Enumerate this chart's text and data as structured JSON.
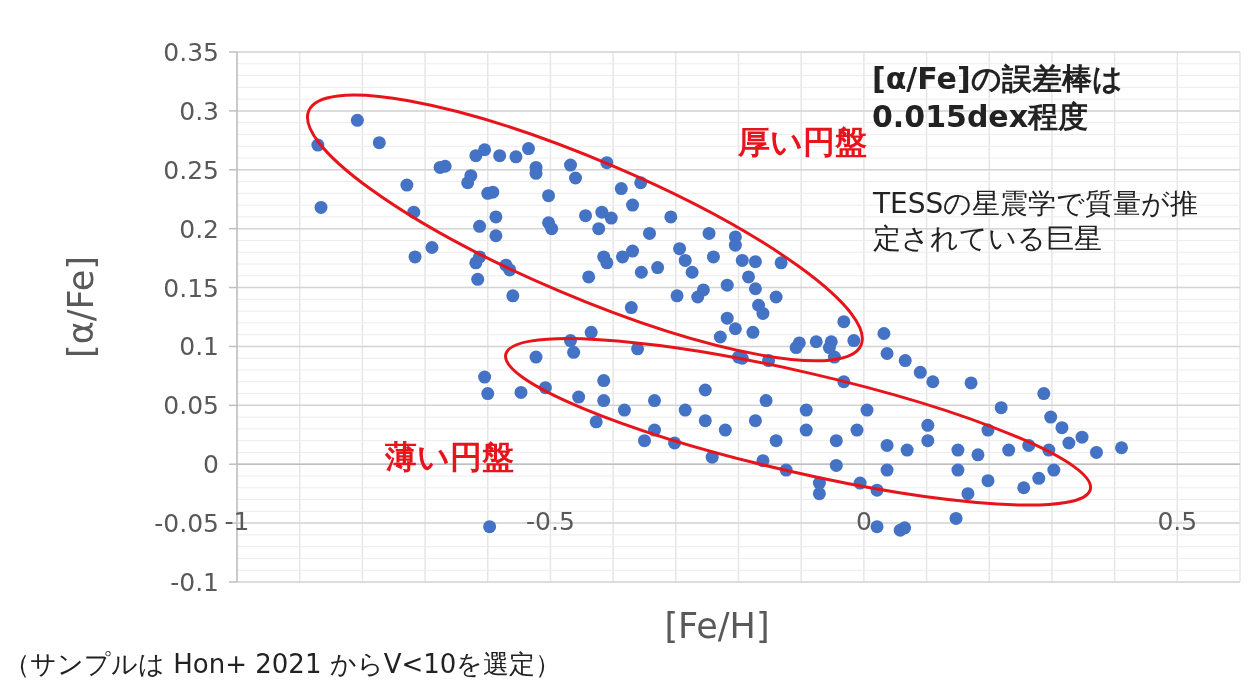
{
  "chart_data": {
    "type": "scatter",
    "xlabel": "[Fe/H]",
    "ylabel": "[α/Fe]",
    "color": "#4472c4",
    "marker": "circle",
    "grid": true,
    "xlim": [
      -1,
      0.6
    ],
    "ylim": [
      -0.1,
      0.35
    ],
    "xticks": [
      -1,
      -0.5,
      0,
      0.5
    ],
    "yticks": [
      -0.1,
      -0.05,
      0,
      0.05,
      0.1,
      0.15,
      0.2,
      0.25,
      0.3,
      0.35
    ],
    "annotations": [
      "厚い円盤",
      "薄い円盤",
      "[α/Fe]の誤差棒は0.015dex程度",
      "TESSの星震学で質量が推定されている巨星",
      "（サンプルは Hon+ 2021 からV<10を選定）"
    ],
    "x": [
      -0.871,
      -0.808,
      -0.773,
      -0.866,
      -0.729,
      -0.718,
      -0.716,
      -0.689,
      -0.676,
      -0.668,
      -0.632,
      -0.627,
      -0.619,
      -0.605,
      -0.581,
      -0.555,
      -0.535,
      -0.523,
      -0.523,
      -0.503,
      -0.503,
      -0.498,
      -0.6,
      -0.592,
      -0.587,
      -0.613,
      -0.587,
      -0.613,
      -0.619,
      -0.571,
      -0.565,
      -0.616,
      -0.56,
      -0.46,
      -0.468,
      -0.41,
      -0.387,
      -0.356,
      -0.369,
      -0.444,
      -0.418,
      -0.403,
      -0.423,
      -0.308,
      -0.342,
      -0.247,
      -0.205,
      -0.205,
      -0.294,
      -0.369,
      -0.385,
      -0.415,
      -0.41,
      -0.285,
      -0.274,
      -0.24,
      -0.194,
      -0.173,
      -0.132,
      -0.329,
      -0.355,
      -0.439,
      -0.184,
      -0.173,
      -0.218,
      -0.256,
      -0.265,
      -0.298,
      -0.14,
      -0.168,
      -0.161,
      -0.371,
      -0.218,
      -0.205,
      -0.177,
      -0.229,
      -0.032,
      -0.016,
      -0.103,
      -0.076,
      -0.052,
      -0.047,
      -0.032,
      -0.152,
      -0.194,
      -0.361,
      -0.468,
      -0.435,
      -0.463,
      -0.523,
      -0.547,
      -0.508,
      -0.427,
      -0.455,
      -0.6,
      -0.605,
      -0.2,
      -0.108,
      -0.055,
      0.032,
      0.037,
      -0.35,
      -0.302,
      -0.242,
      -0.161,
      -0.124,
      -0.071,
      -0.071,
      -0.006,
      0.021,
      0.021,
      0.058,
      -0.597,
      -0.415,
      -0.382,
      -0.334,
      -0.285,
      -0.253,
      -0.334,
      -0.221,
      -0.173,
      -0.14,
      -0.092,
      -0.044,
      -0.011,
      0.037,
      0.069,
      0.102,
      0.15,
      0.182,
      0.231,
      0.263,
      0.295,
      -0.415,
      -0.253,
      -0.092,
      0.005,
      -0.156,
      0.102,
      0.198,
      0.15,
      0.037,
      -0.044,
      0.066,
      0.09,
      0.11,
      0.171,
      0.287,
      0.219,
      0.298,
      0.316,
      0.348,
      0.371,
      0.411,
      0.327,
      0.303,
      0.279,
      0.255,
      0.198,
      0.166,
      0.147,
      0.065
    ],
    "values": [
      0.271,
      0.292,
      0.273,
      0.218,
      0.237,
      0.214,
      0.176,
      0.184,
      0.252,
      0.253,
      0.239,
      0.245,
      0.262,
      0.267,
      0.262,
      0.261,
      0.268,
      0.252,
      0.247,
      0.228,
      0.205,
      0.2,
      0.23,
      0.231,
      0.21,
      0.202,
      0.194,
      0.176,
      0.171,
      0.169,
      0.165,
      0.157,
      0.143,
      0.243,
      0.254,
      0.256,
      0.234,
      0.239,
      0.22,
      0.211,
      0.214,
      0.209,
      0.2,
      0.21,
      0.196,
      0.196,
      0.193,
      0.186,
      0.183,
      0.181,
      0.176,
      0.176,
      0.171,
      0.173,
      0.163,
      0.176,
      0.173,
      0.172,
      0.171,
      0.167,
      0.163,
      0.159,
      0.159,
      0.149,
      0.152,
      0.148,
      0.142,
      0.143,
      0.142,
      0.135,
      0.128,
      0.133,
      0.124,
      0.115,
      0.112,
      0.108,
      0.121,
      0.105,
      0.103,
      0.104,
      0.104,
      0.091,
      0.07,
      0.088,
      0.09,
      0.098,
      0.105,
      0.112,
      0.095,
      0.091,
      0.061,
      0.065,
      0.036,
      0.057,
      0.06,
      0.074,
      0.091,
      0.099,
      0.099,
      0.111,
      0.094,
      0.02,
      0.018,
      0.006,
      0.003,
      -0.005,
      -0.025,
      -0.016,
      -0.016,
      -0.022,
      -0.053,
      -0.056,
      -0.053,
      0.054,
      0.046,
      0.054,
      0.046,
      0.037,
      0.029,
      0.029,
      0.037,
      0.02,
      0.029,
      0.02,
      0.029,
      0.016,
      0.012,
      0.02,
      0.012,
      0.008,
      0.012,
      0.016,
      0.012,
      0.071,
      0.063,
      0.046,
      0.046,
      0.054,
      0.033,
      0.029,
      -0.005,
      -0.005,
      -0.001,
      0.088,
      0.078,
      0.07,
      0.069,
      0.06,
      0.048,
      0.04,
      0.031,
      0.023,
      0.01,
      0.014,
      0.018,
      -0.005,
      -0.012,
      -0.02,
      -0.014,
      -0.025,
      -0.046,
      -0.054
    ]
  }
}
